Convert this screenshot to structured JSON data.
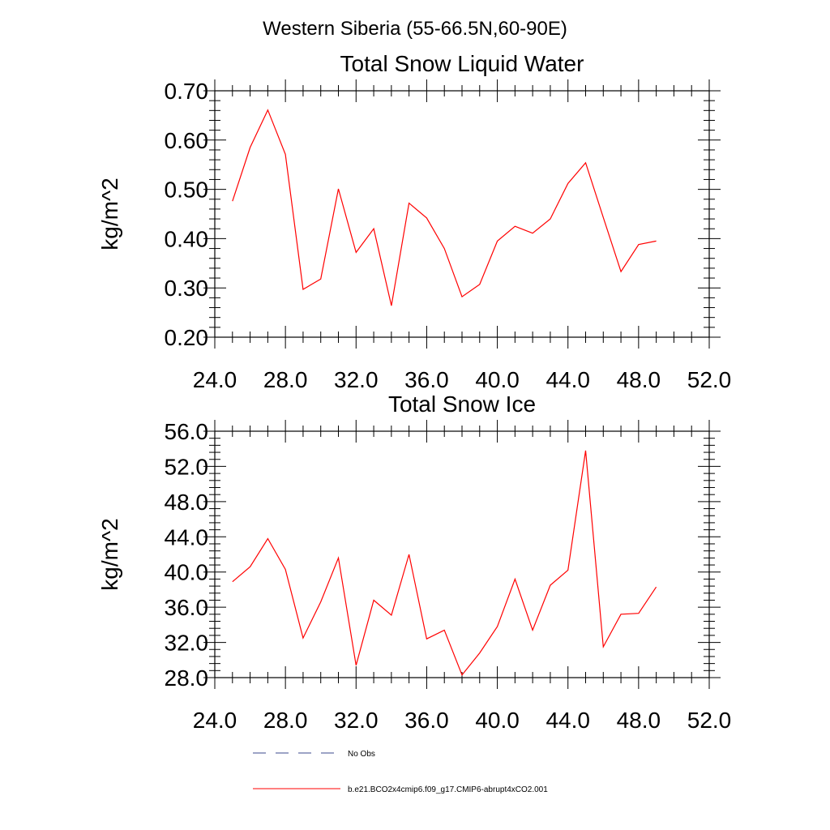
{
  "figure_title": "Western Siberia (55-66.5N,60-90E)",
  "legend": [
    {
      "label": "No Obs",
      "style": "dashed",
      "color": "#3b4a8c"
    },
    {
      "label": "b.e21.BCO2x4cmip6.f09_g17.CMIP6-abrupt4xCO2.001",
      "style": "solid",
      "color": "#ff0000"
    }
  ],
  "chart_data": [
    {
      "type": "line",
      "title": "Total Snow Liquid Water",
      "xlabel": "",
      "ylabel": "kg/m^2",
      "xlim": [
        24,
        52
      ],
      "ylim": [
        0.2,
        0.7
      ],
      "x_ticks": [
        "24.0",
        "28.0",
        "32.0",
        "36.0",
        "40.0",
        "44.0",
        "48.0",
        "52.0"
      ],
      "y_ticks": [
        "0.20",
        "0.30",
        "0.40",
        "0.50",
        "0.60",
        "0.70"
      ],
      "series": [
        {
          "name": "b.e21.BCO2x4cmip6.f09_g17.CMIP6-abrupt4xCO2.001",
          "color": "#ff0000",
          "x": [
            25,
            26,
            27,
            28,
            29,
            30,
            31,
            32,
            33,
            34,
            35,
            36,
            37,
            38,
            39,
            40,
            41,
            42,
            43,
            44,
            45,
            46,
            47,
            48,
            49
          ],
          "values": [
            0.476,
            0.585,
            0.661,
            0.571,
            0.297,
            0.318,
            0.501,
            0.372,
            0.42,
            0.264,
            0.472,
            0.442,
            0.38,
            0.282,
            0.307,
            0.395,
            0.425,
            0.411,
            0.44,
            0.512,
            0.554,
            0.443,
            0.333,
            0.388,
            0.395
          ]
        }
      ]
    },
    {
      "type": "line",
      "title": "Total Snow Ice",
      "xlabel": "",
      "ylabel": "kg/m^2",
      "xlim": [
        24,
        52
      ],
      "ylim": [
        28,
        56
      ],
      "x_ticks": [
        "24.0",
        "28.0",
        "32.0",
        "36.0",
        "40.0",
        "44.0",
        "48.0",
        "52.0"
      ],
      "y_ticks": [
        "28.0",
        "32.0",
        "36.0",
        "40.0",
        "44.0",
        "48.0",
        "52.0",
        "56.0"
      ],
      "series": [
        {
          "name": "b.e21.BCO2x4cmip6.f09_g17.CMIP6-abrupt4xCO2.001",
          "color": "#ff0000",
          "x": [
            25,
            26,
            27,
            28,
            29,
            30,
            31,
            32,
            33,
            34,
            35,
            36,
            37,
            38,
            39,
            40,
            41,
            42,
            43,
            44,
            45,
            46,
            47,
            48,
            49
          ],
          "values": [
            38.9,
            40.6,
            43.8,
            40.3,
            32.5,
            36.6,
            41.6,
            29.4,
            36.8,
            35.1,
            42.0,
            32.4,
            33.4,
            28.3,
            30.8,
            33.8,
            39.2,
            33.4,
            38.5,
            40.2,
            53.8,
            31.5,
            35.2,
            35.3,
            38.3
          ]
        }
      ]
    }
  ]
}
